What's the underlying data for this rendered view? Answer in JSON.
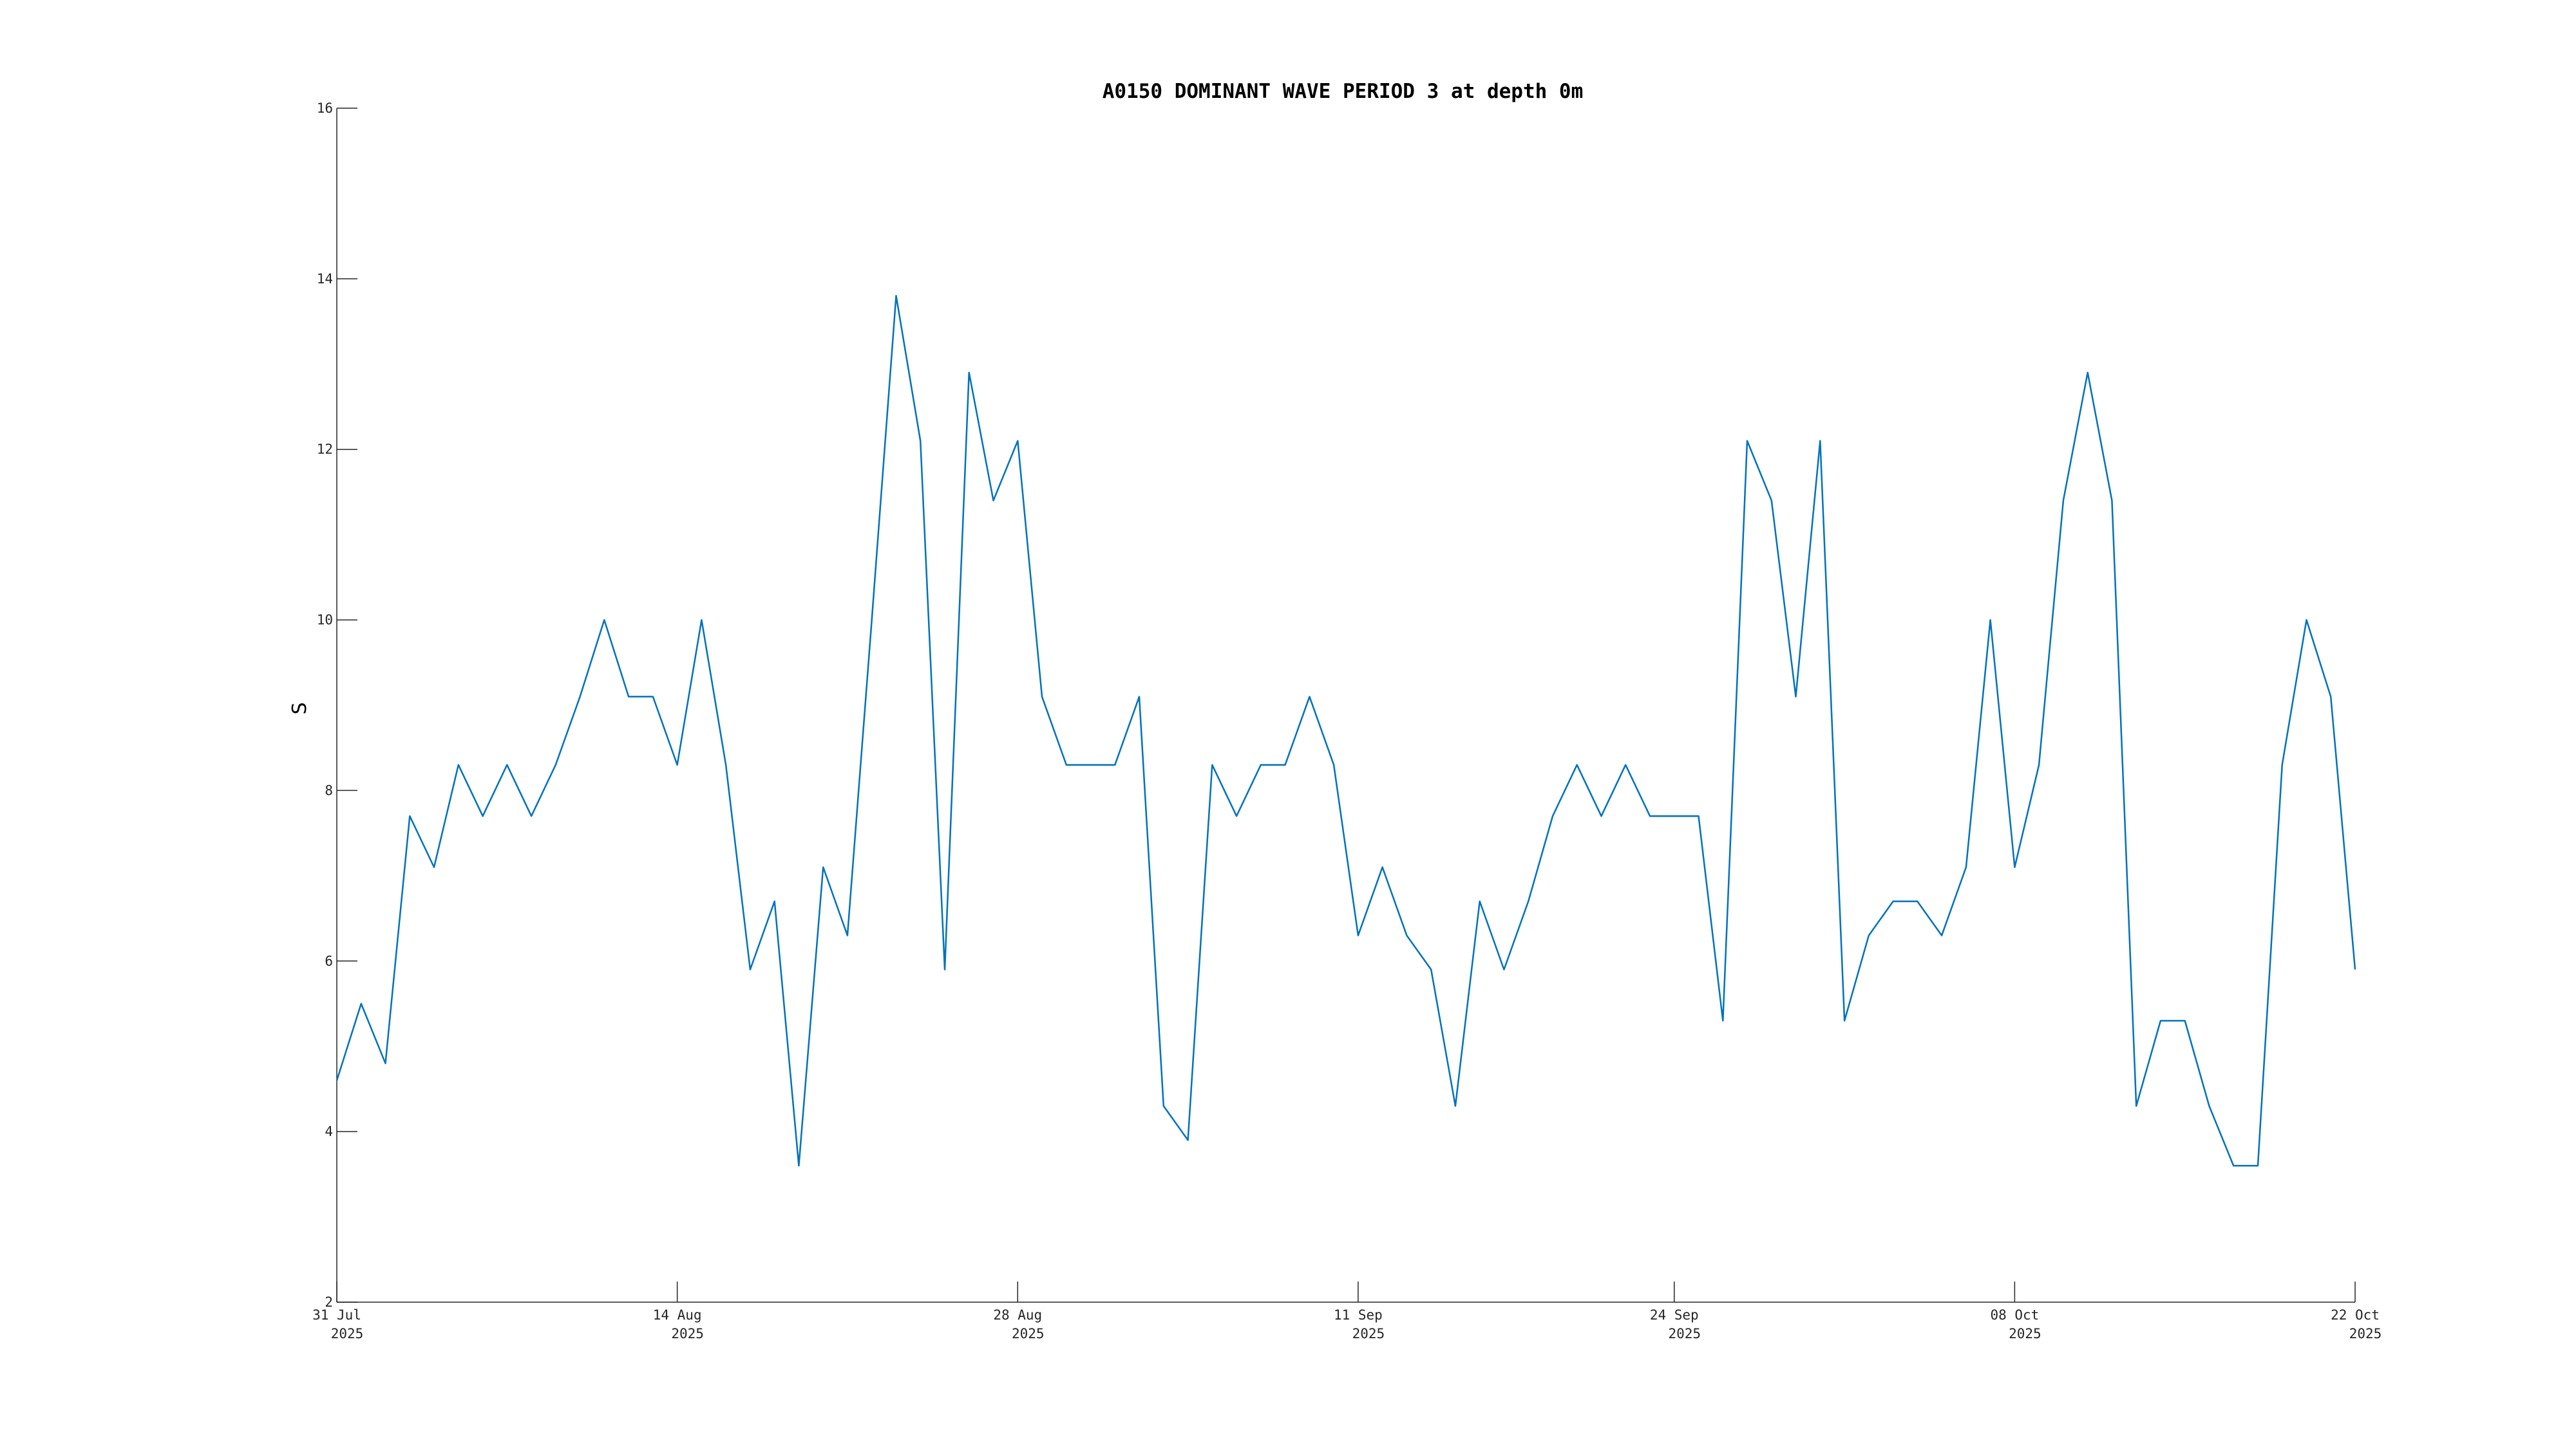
{
  "chart_data": {
    "type": "line",
    "title": "A0150 DOMINANT WAVE PERIOD 3 at depth 0m",
    "xlabel": "",
    "ylabel": "S",
    "ylim": [
      2,
      16
    ],
    "xlim": [
      "2025-07-31",
      "2025-10-22"
    ],
    "grid": false,
    "y_ticks": [
      "2",
      "4",
      "6",
      "8",
      "10",
      "12",
      "14",
      "16"
    ],
    "x_ticks": [
      {
        "date": "2025-07-31",
        "line1": "31 Jul",
        "line2": "2025"
      },
      {
        "date": "2025-08-14",
        "line1": "14 Aug",
        "line2": "2025"
      },
      {
        "date": "2025-08-28",
        "line1": "28 Aug",
        "line2": "2025"
      },
      {
        "date": "2025-09-11",
        "line1": "11 Sep",
        "line2": "2025"
      },
      {
        "date": "2025-09-24",
        "line1": "24 Sep",
        "line2": "2025"
      },
      {
        "date": "2025-10-08",
        "line1": "08 Oct",
        "line2": "2025"
      },
      {
        "date": "2025-10-22",
        "line1": "22 Oct",
        "line2": "2025"
      }
    ],
    "colors": {
      "series": "#0072BD",
      "axis": "#262626"
    },
    "series": [
      {
        "x": [
          "2025-07-31",
          "2025-08-01",
          "2025-08-02",
          "2025-08-03",
          "2025-08-04",
          "2025-08-05",
          "2025-08-06",
          "2025-08-07",
          "2025-08-08",
          "2025-08-09",
          "2025-08-10",
          "2025-08-11",
          "2025-08-12",
          "2025-08-13",
          "2025-08-14",
          "2025-08-15",
          "2025-08-16",
          "2025-08-17",
          "2025-08-18",
          "2025-08-19",
          "2025-08-20",
          "2025-08-21",
          "2025-08-22",
          "2025-08-23",
          "2025-08-24",
          "2025-08-25",
          "2025-08-26",
          "2025-08-27",
          "2025-08-28",
          "2025-08-29",
          "2025-08-30",
          "2025-08-31",
          "2025-09-01",
          "2025-09-02",
          "2025-09-03",
          "2025-09-04",
          "2025-09-05",
          "2025-09-06",
          "2025-09-07",
          "2025-09-08",
          "2025-09-09",
          "2025-09-10",
          "2025-09-11",
          "2025-09-12",
          "2025-09-13",
          "2025-09-14",
          "2025-09-15",
          "2025-09-16",
          "2025-09-17",
          "2025-09-18",
          "2025-09-19",
          "2025-09-20",
          "2025-09-21",
          "2025-09-22",
          "2025-09-23",
          "2025-09-24",
          "2025-09-25",
          "2025-09-26",
          "2025-09-27",
          "2025-09-28",
          "2025-09-29",
          "2025-09-30",
          "2025-10-01",
          "2025-10-02",
          "2025-10-03",
          "2025-10-04",
          "2025-10-05",
          "2025-10-06",
          "2025-10-07",
          "2025-10-08",
          "2025-10-09",
          "2025-10-10",
          "2025-10-11",
          "2025-10-12",
          "2025-10-13",
          "2025-10-14",
          "2025-10-15",
          "2025-10-16",
          "2025-10-17",
          "2025-10-18",
          "2025-10-19",
          "2025-10-20",
          "2025-10-21",
          "2025-10-22"
        ],
        "values": [
          4.6,
          5.5,
          4.8,
          7.7,
          7.1,
          8.3,
          7.7,
          8.3,
          7.7,
          8.3,
          9.1,
          10.0,
          9.1,
          9.1,
          8.3,
          10.0,
          8.3,
          5.9,
          6.7,
          3.6,
          7.1,
          6.3,
          10.0,
          13.8,
          12.1,
          5.9,
          12.9,
          11.4,
          12.1,
          9.1,
          8.3,
          8.3,
          8.3,
          9.1,
          4.3,
          3.9,
          8.3,
          7.7,
          8.3,
          8.3,
          9.1,
          8.3,
          6.3,
          7.1,
          6.3,
          5.9,
          4.3,
          6.7,
          5.9,
          6.7,
          7.7,
          8.3,
          7.7,
          8.3,
          7.7,
          7.7,
          7.7,
          5.3,
          12.1,
          11.4,
          9.1,
          12.1,
          5.3,
          6.3,
          6.7,
          6.7,
          6.3,
          7.1,
          10.0,
          7.1,
          8.3,
          11.4,
          12.9,
          11.4,
          4.3,
          5.3,
          5.3,
          4.3,
          3.6,
          3.6,
          8.3,
          10.0,
          9.1,
          5.9
        ]
      }
    ]
  }
}
